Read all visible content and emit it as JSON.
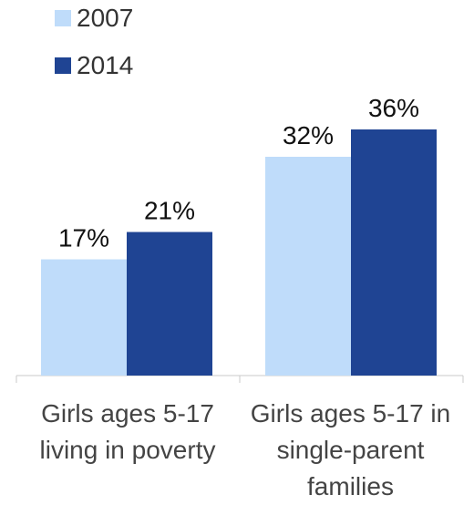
{
  "chart_data": {
    "type": "bar",
    "title": "",
    "xlabel": "",
    "ylabel": "",
    "categories": [
      "Girls ages 5-17 living in poverty",
      "Girls ages 5-17 in single-parent families"
    ],
    "category_lines": [
      [
        "Girls ages 5-17",
        "living in poverty"
      ],
      [
        "Girls ages 5-17 in",
        "single-parent",
        "families"
      ]
    ],
    "series": [
      {
        "name": "2007",
        "values": [
          17,
          32
        ],
        "labels": [
          "17%",
          "32%"
        ],
        "color": "#bfdcfa"
      },
      {
        "name": "2014",
        "values": [
          21,
          36
        ],
        "labels": [
          "21%",
          "36%"
        ],
        "color": "#1f4493"
      }
    ],
    "ylim": [
      0,
      40
    ],
    "grid": false,
    "legend_position": "top-left"
  }
}
